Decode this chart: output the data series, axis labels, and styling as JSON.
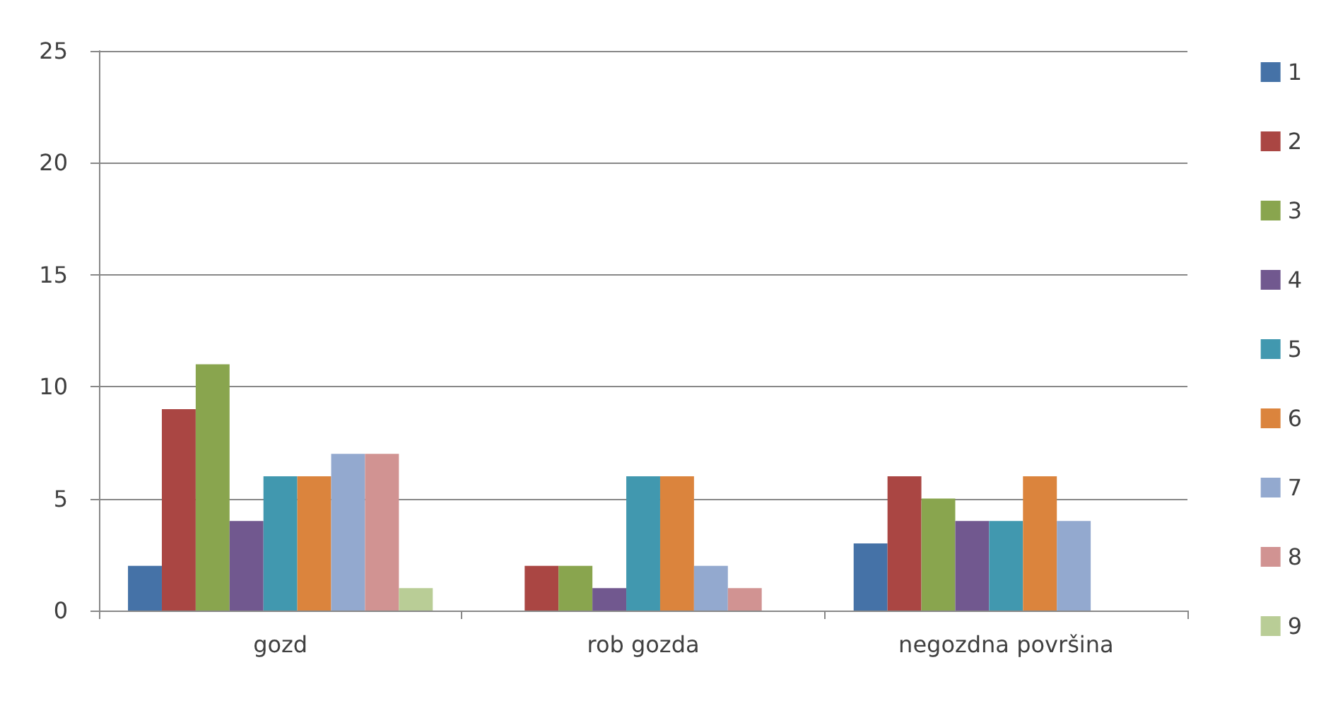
{
  "chart_data": {
    "type": "bar",
    "categories": [
      "gozd",
      "rob gozda",
      "negozdna površina"
    ],
    "series": [
      {
        "name": "1",
        "color": "#4572a7",
        "values": [
          2,
          0,
          3
        ]
      },
      {
        "name": "2",
        "color": "#aa4643",
        "values": [
          9,
          2,
          6
        ]
      },
      {
        "name": "3",
        "color": "#89a54e",
        "values": [
          11,
          2,
          5
        ]
      },
      {
        "name": "4",
        "color": "#71588f",
        "values": [
          4,
          1,
          4
        ]
      },
      {
        "name": "5",
        "color": "#4198af",
        "values": [
          6,
          6,
          4
        ]
      },
      {
        "name": "6",
        "color": "#db843d",
        "values": [
          6,
          6,
          6
        ]
      },
      {
        "name": "7",
        "color": "#93a9cf",
        "values": [
          7,
          2,
          4
        ]
      },
      {
        "name": "8",
        "color": "#d19392",
        "values": [
          7,
          1,
          0
        ]
      },
      {
        "name": "9",
        "color": "#b9cd96",
        "values": [
          1,
          0,
          0
        ]
      }
    ],
    "ylim": [
      0,
      25
    ],
    "yticks": [
      0,
      5,
      10,
      15,
      20,
      25
    ],
    "grid": "y",
    "legend": "right"
  }
}
